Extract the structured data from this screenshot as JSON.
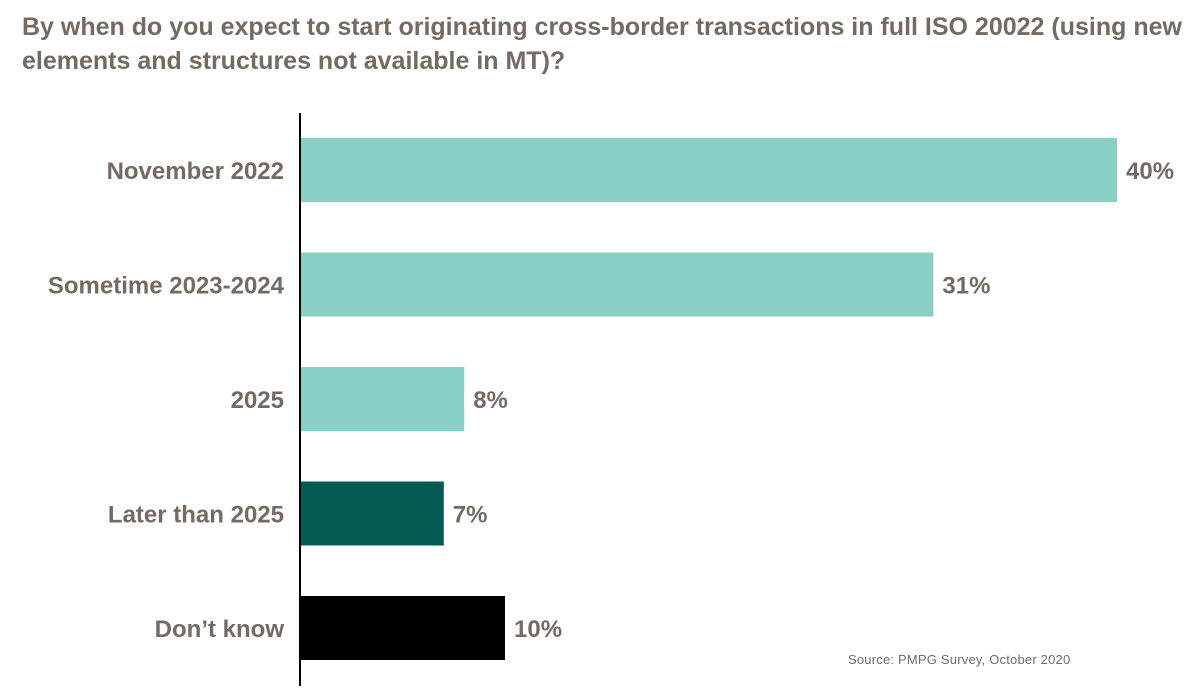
{
  "chart_data": {
    "type": "bar",
    "orientation": "horizontal",
    "title": "By when do you expect to start originating cross-border transactions in full ISO 20022 (using new elements and structures not available in MT)?",
    "categories": [
      "November 2022",
      "Sometime 2023-2024",
      "2025",
      "Later than 2025",
      "Don’t know"
    ],
    "values": [
      40,
      31,
      8,
      7,
      10
    ],
    "value_labels": [
      "40%",
      "31%",
      "8%",
      "7%",
      "10%"
    ],
    "colors": [
      "#89d1c6",
      "#89d1c6",
      "#89d1c6",
      "#045b53",
      "#000000"
    ],
    "xlim": [
      0,
      40
    ],
    "xlabel": "",
    "ylabel": "",
    "unit": "%",
    "grid": false,
    "legend": "none",
    "source": "Source: PMPG Survey, October 2020"
  },
  "colors": {
    "text": "#756a61",
    "axis": "#000000"
  }
}
